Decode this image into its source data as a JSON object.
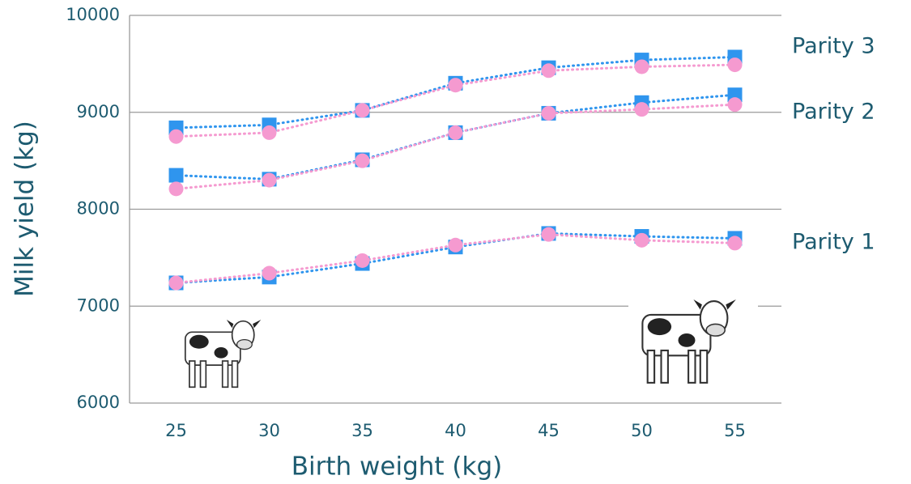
{
  "chart_data": {
    "type": "line",
    "x_label": "Birth weight (kg)",
    "y_label": "Milk yield (kg)",
    "x": [
      25,
      30,
      35,
      40,
      45,
      50,
      55
    ],
    "xlim": [
      22.5,
      57.5
    ],
    "xticks": [
      25,
      30,
      35,
      40,
      45,
      50,
      55
    ],
    "ylim": [
      6000,
      10000
    ],
    "yticks": [
      6000,
      7000,
      8000,
      9000,
      10000
    ],
    "grid": true,
    "groups": [
      {
        "label": "Parity 3",
        "series": [
          {
            "color": "#2f95ee",
            "marker": "square",
            "values": [
              8840,
              8870,
              9020,
              9300,
              9460,
              9540,
              9570
            ]
          },
          {
            "color": "#f59ad0",
            "marker": "circle",
            "values": [
              8750,
              8790,
              9020,
              9280,
              9430,
              9470,
              9490
            ]
          }
        ]
      },
      {
        "label": "Parity 2",
        "series": [
          {
            "color": "#2f95ee",
            "marker": "square",
            "values": [
              8350,
              8310,
              8510,
              8790,
              8990,
              9100,
              9180
            ]
          },
          {
            "color": "#f59ad0",
            "marker": "circle",
            "values": [
              8210,
              8300,
              8500,
              8790,
              8990,
              9030,
              9080
            ]
          }
        ]
      },
      {
        "label": "Parity 1",
        "series": [
          {
            "color": "#2f95ee",
            "marker": "square",
            "values": [
              7240,
              7300,
              7440,
              7610,
              7750,
              7720,
              7700
            ]
          },
          {
            "color": "#f59ad0",
            "marker": "circle",
            "values": [
              7240,
              7340,
              7470,
              7630,
              7740,
              7680,
              7650
            ]
          }
        ]
      }
    ]
  }
}
